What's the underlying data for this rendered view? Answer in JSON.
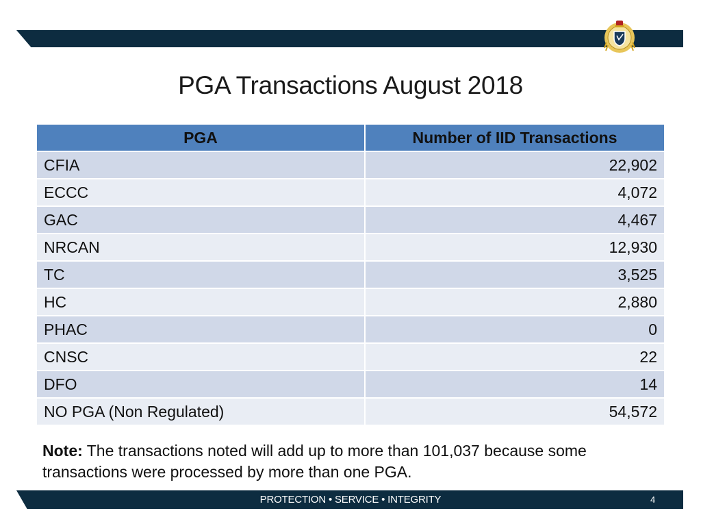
{
  "title": "PGA Transactions August 2018",
  "table": {
    "headers": [
      "PGA",
      "Number of IID Transactions"
    ],
    "rows": [
      {
        "pga": "CFIA",
        "count": "22,902"
      },
      {
        "pga": "ECCC",
        "count": "4,072"
      },
      {
        "pga": "GAC",
        "count": "4,467"
      },
      {
        "pga": "NRCAN",
        "count": "12,930"
      },
      {
        "pga": "TC",
        "count": "3,525"
      },
      {
        "pga": "HC",
        "count": "2,880"
      },
      {
        "pga": "PHAC",
        "count": "0"
      },
      {
        "pga": "CNSC",
        "count": "22"
      },
      {
        "pga": "DFO",
        "count": "14"
      },
      {
        "pga": "NO PGA (Non Regulated)",
        "count": "54,572"
      }
    ]
  },
  "note": {
    "label": "Note:",
    "text": " The transactions noted will add up to more than 101,037 because some transactions were processed by more than one PGA."
  },
  "footer": {
    "tagline": "PROTECTION • SERVICE • INTEGRITY",
    "page_number": "4"
  },
  "colors": {
    "bar": "#0d2c40",
    "header": "#4f81bd",
    "row_odd": "#d0d8e8",
    "row_even": "#e9edf4"
  },
  "icons": {
    "crest": "agency-crest-icon"
  }
}
